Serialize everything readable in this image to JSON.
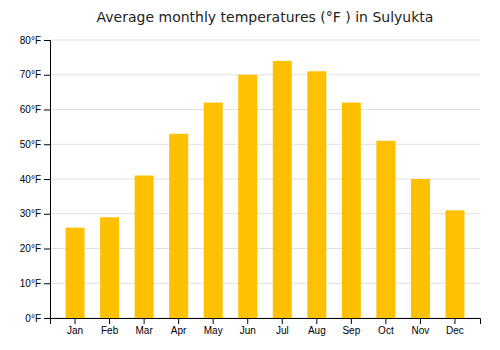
{
  "chart_data": {
    "type": "bar",
    "title": "Average monthly temperatures (°F ) in Sulyukta",
    "categories": [
      "Jan",
      "Feb",
      "Mar",
      "Apr",
      "May",
      "Jun",
      "Jul",
      "Aug",
      "Sep",
      "Oct",
      "Nov",
      "Dec"
    ],
    "values": [
      26,
      29,
      41,
      53,
      62,
      70,
      74,
      71,
      62,
      51,
      40,
      31
    ],
    "color": "#FFC000",
    "ylim": [
      0,
      80
    ],
    "yticks": [
      {
        "value": 0,
        "label": "0°F"
      },
      {
        "value": 10,
        "label": "10°F"
      },
      {
        "value": 20,
        "label": "20°F"
      },
      {
        "value": 30,
        "label": "30°F"
      },
      {
        "value": 40,
        "label": "40°F"
      },
      {
        "value": 50,
        "label": "50°F"
      },
      {
        "value": 60,
        "label": "60°F"
      },
      {
        "value": 70,
        "label": "70°F"
      },
      {
        "value": 80,
        "label": "80°F"
      }
    ],
    "grid": true
  }
}
